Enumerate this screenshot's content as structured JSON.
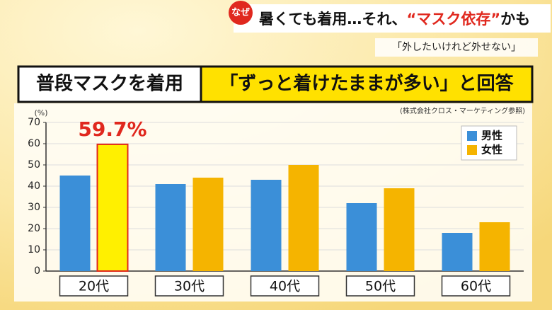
{
  "badge": "なぜ",
  "headline": [
    "暑くても着用…それ、",
    "“マスク依存”",
    "かも"
  ],
  "subtitle": "「外したいけれど外せない」",
  "banner": {
    "left": "普段マスクを着用",
    "right": "「ずっと着けたままが多い」と回答"
  },
  "chart_data": {
    "type": "bar",
    "source": "(株式会社クロス・マーケティング参照)",
    "y_unit": "(%)",
    "categories": [
      "20代",
      "30代",
      "40代",
      "50代",
      "60代"
    ],
    "series": [
      {
        "name": "男性",
        "color": "#3b8fd8",
        "values": [
          45,
          41,
          43,
          32,
          18
        ]
      },
      {
        "name": "女性",
        "color": "#f5b400",
        "values": [
          59.7,
          44,
          50,
          39,
          23
        ],
        "value_labels": [
          "59.7%",
          null,
          null,
          null,
          null
        ]
      }
    ],
    "highlight": {
      "series": 1,
      "index": 0,
      "color": "#fff000",
      "outline": "#e0281e"
    },
    "ylim": [
      0,
      70
    ],
    "yticks": [
      0,
      10,
      20,
      30,
      40,
      50,
      60,
      70
    ],
    "grid": true,
    "legend": "top-right"
  }
}
